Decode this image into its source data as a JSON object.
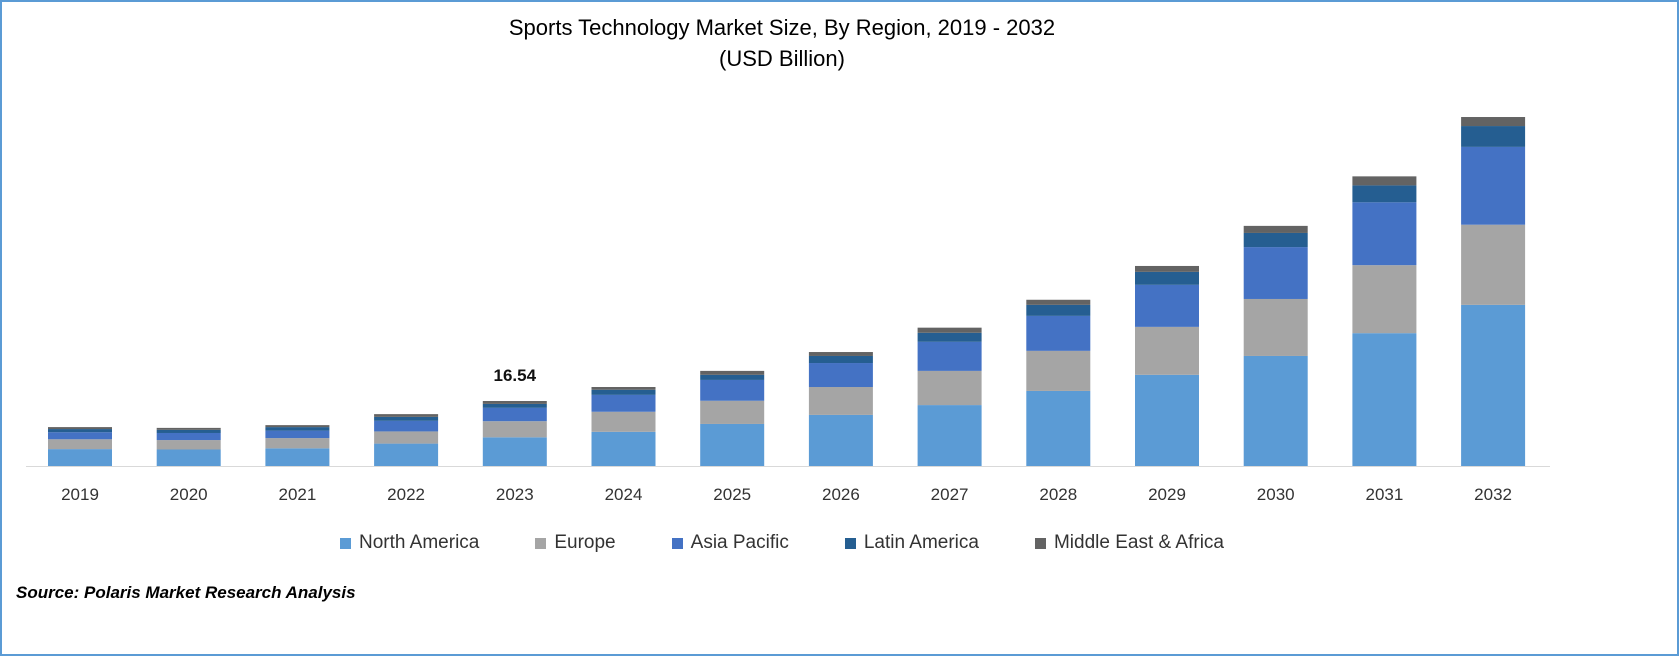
{
  "chart_data": {
    "type": "bar",
    "stacked": true,
    "title": "Sports Technology Market Size, By Region, 2019 - 2032",
    "subtitle": "(USD Billion)",
    "xlabel": "",
    "ylabel": "",
    "ylim": [
      0,
      92
    ],
    "grid": false,
    "legend_position": "bottom",
    "categories": [
      "2019",
      "2020",
      "2021",
      "2022",
      "2023",
      "2024",
      "2025",
      "2026",
      "2027",
      "2028",
      "2029",
      "2030",
      "2031",
      "2032"
    ],
    "series": [
      {
        "name": "North America",
        "color": "#5B9BD5",
        "values": [
          4.3,
          4.2,
          4.5,
          5.7,
          7.3,
          8.7,
          10.7,
          13.0,
          15.5,
          19.1,
          23.2,
          28.0,
          33.8,
          41.0
        ]
      },
      {
        "name": "Europe",
        "color": "#A5A5A5",
        "values": [
          2.5,
          2.4,
          2.6,
          3.1,
          4.1,
          5.1,
          5.9,
          7.1,
          8.7,
          10.2,
          12.2,
          14.5,
          17.3,
          20.4
        ]
      },
      {
        "name": "Asia Pacific",
        "color": "#4472C4",
        "values": [
          1.8,
          1.8,
          1.9,
          2.7,
          3.4,
          4.3,
          5.3,
          6.1,
          7.4,
          8.9,
          10.7,
          13.2,
          16.0,
          19.8
        ]
      },
      {
        "name": "Latin America",
        "color": "#255E91",
        "values": [
          0.8,
          0.8,
          0.9,
          1.0,
          1.0,
          1.3,
          1.3,
          1.8,
          2.3,
          2.8,
          3.3,
          3.6,
          4.3,
          5.3
        ]
      },
      {
        "name": "Middle East & Africa",
        "color": "#636363",
        "values": [
          0.5,
          0.5,
          0.5,
          0.7,
          0.74,
          0.7,
          1.0,
          1.0,
          1.3,
          1.3,
          1.5,
          1.8,
          2.3,
          2.3
        ]
      }
    ],
    "annotations": [
      {
        "category": "2023",
        "text": "16.54"
      }
    ]
  },
  "source": "Source: Polaris Market Research Analysis"
}
